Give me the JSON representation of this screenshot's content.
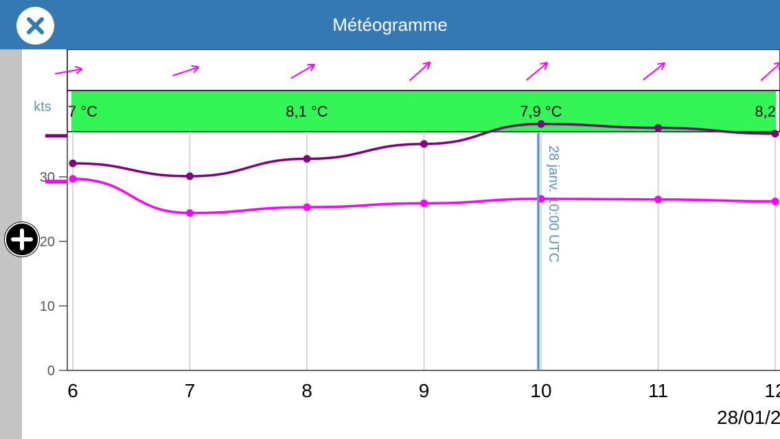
{
  "header": {
    "title": "Météogramme",
    "close_icon": "close-icon",
    "background": "#3478b4"
  },
  "zoom_button": {
    "icon": "plus-icon"
  },
  "chart_data": {
    "type": "line",
    "ylabel": "kts",
    "ylim": [
      0,
      40
    ],
    "yticks": [
      0,
      10,
      20,
      30
    ],
    "x": [
      6,
      7,
      8,
      9,
      10,
      11,
      12
    ],
    "xtick_labels": [
      "6",
      "7",
      "8",
      "9",
      "10",
      "11",
      "12"
    ],
    "date_label": "28/01/2",
    "series": [
      {
        "color": "#800080",
        "values": [
          32.1,
          30.1,
          32.8,
          35.1,
          38.2,
          37.6,
          36.7
        ]
      },
      {
        "color": "#ff00ff",
        "values": [
          29.7,
          24.4,
          25.3,
          25.9,
          26.6,
          26.5,
          26.2
        ]
      }
    ],
    "temperature_band": {
      "color": "#33f555",
      "labels": [
        {
          "x": 6,
          "text": "7 °C"
        },
        {
          "x": 8,
          "text": "8,1 °C"
        },
        {
          "x": 10,
          "text": "7,9 °C"
        },
        {
          "x": 12,
          "text": "8,2"
        }
      ]
    },
    "wind_arrows": [
      {
        "x": 6,
        "angle_deg": 10
      },
      {
        "x": 7,
        "angle_deg": 18
      },
      {
        "x": 8,
        "angle_deg": 30
      },
      {
        "x": 9,
        "angle_deg": 42
      },
      {
        "x": 10,
        "angle_deg": 40
      },
      {
        "x": 11,
        "angle_deg": 38
      },
      {
        "x": 12,
        "angle_deg": 42
      }
    ],
    "cursor": {
      "x": 10,
      "label": "28 janv. 10:00 UTC",
      "color": "#5b95c4"
    },
    "axis_label_color": "#5b95c4"
  }
}
